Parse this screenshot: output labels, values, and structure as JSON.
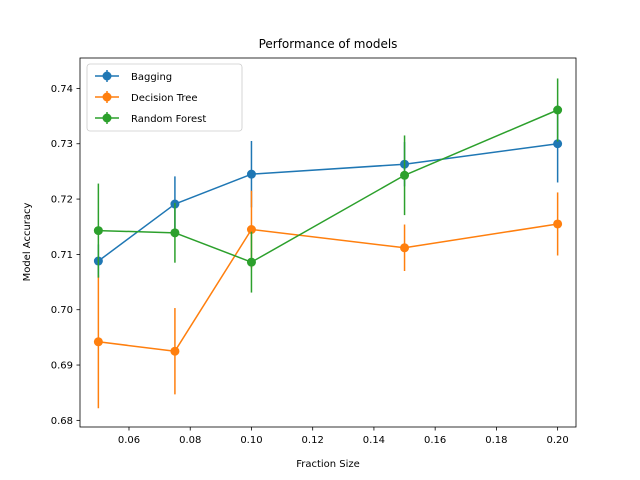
{
  "chart_data": {
    "type": "line",
    "title": "Performance of models",
    "xlabel": "Fraction Size",
    "ylabel": "Model Accuracy",
    "xlim": [
      0.044,
      0.206
    ],
    "ylim": [
      0.6788,
      0.7455
    ],
    "xticks": [
      0.06,
      0.08,
      0.1,
      0.12,
      0.14,
      0.16,
      0.18,
      0.2
    ],
    "xtick_labels": [
      "0.06",
      "0.08",
      "0.10",
      "0.12",
      "0.14",
      "0.16",
      "0.18",
      "0.20"
    ],
    "yticks": [
      0.68,
      0.69,
      0.7,
      0.71,
      0.72,
      0.73,
      0.74
    ],
    "ytick_labels": [
      "0.68",
      "0.69",
      "0.70",
      "0.71",
      "0.72",
      "0.73",
      "0.74"
    ],
    "grid": false,
    "legend_position": "top-left",
    "x": [
      0.05,
      0.075,
      0.1,
      0.15,
      0.2
    ],
    "series": [
      {
        "name": "Bagging",
        "color": "#1f77b4",
        "values": [
          0.7088,
          0.7191,
          0.7245,
          0.7263,
          0.73
        ],
        "errors": [
          0.003,
          0.005,
          0.006,
          0.004,
          0.007
        ]
      },
      {
        "name": "Decision Tree",
        "color": "#ff7f0e",
        "values": [
          0.6942,
          0.6925,
          0.7145,
          0.7112,
          0.7155
        ],
        "errors": [
          0.012,
          0.0078,
          0.007,
          0.0042,
          0.0057
        ]
      },
      {
        "name": "Random Forest",
        "color": "#2ca02c",
        "values": [
          0.7143,
          0.7139,
          0.7086,
          0.7243,
          0.7361
        ],
        "errors": [
          0.0085,
          0.0054,
          0.0055,
          0.0072,
          0.0057
        ]
      }
    ]
  }
}
